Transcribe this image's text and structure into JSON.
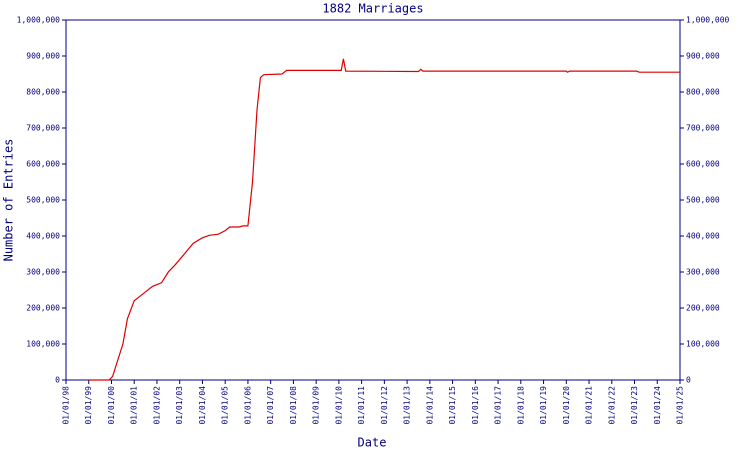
{
  "chart_data": {
    "type": "line",
    "title": "1882 Marriages",
    "x_label": "Date",
    "y_label": "Number of Entries",
    "color": "#dd0000",
    "x": [
      1999.0,
      1999.9,
      2000.05,
      2000.3,
      2000.5,
      2000.7,
      2001.0,
      2001.2,
      2001.5,
      2001.8,
      2002.2,
      2002.5,
      2002.8,
      2003.2,
      2003.6,
      2004.0,
      2004.3,
      2004.7,
      2005.0,
      2005.2,
      2005.6,
      2005.8,
      2006.0,
      2006.2,
      2006.4,
      2006.55,
      2006.7,
      2007.5,
      2007.7,
      2010.1,
      2010.2,
      2010.3,
      2013.5,
      2013.6,
      2013.7,
      2020.0,
      2020.05,
      2020.15,
      2023.1,
      2023.2,
      2025.0
    ],
    "values": [
      0,
      0,
      10000,
      60000,
      100000,
      170000,
      220000,
      230000,
      245000,
      260000,
      270000,
      300000,
      320000,
      350000,
      380000,
      395000,
      402000,
      405000,
      415000,
      425000,
      425000,
      428000,
      428000,
      550000,
      750000,
      840000,
      848000,
      850000,
      860000,
      860000,
      892000,
      858000,
      857000,
      863000,
      858000,
      858000,
      855000,
      858000,
      858000,
      855000,
      855000
    ],
    "xlim": [
      1998,
      2025
    ],
    "xticks": [
      {
        "value": 1998,
        "label": "01/01/98"
      },
      {
        "value": 1999,
        "label": "01/01/99"
      },
      {
        "value": 2000,
        "label": "01/01/00"
      },
      {
        "value": 2001,
        "label": "01/01/01"
      },
      {
        "value": 2002,
        "label": "01/01/02"
      },
      {
        "value": 2003,
        "label": "01/01/03"
      },
      {
        "value": 2004,
        "label": "01/01/04"
      },
      {
        "value": 2005,
        "label": "01/01/05"
      },
      {
        "value": 2006,
        "label": "01/01/06"
      },
      {
        "value": 2007,
        "label": "01/01/07"
      },
      {
        "value": 2008,
        "label": "01/01/08"
      },
      {
        "value": 2009,
        "label": "01/01/09"
      },
      {
        "value": 2010,
        "label": "01/01/10"
      },
      {
        "value": 2011,
        "label": "01/01/11"
      },
      {
        "value": 2012,
        "label": "01/01/12"
      },
      {
        "value": 2013,
        "label": "01/01/13"
      },
      {
        "value": 2014,
        "label": "01/01/14"
      },
      {
        "value": 2015,
        "label": "01/01/15"
      },
      {
        "value": 2016,
        "label": "01/01/16"
      },
      {
        "value": 2017,
        "label": "01/01/17"
      },
      {
        "value": 2018,
        "label": "01/01/18"
      },
      {
        "value": 2019,
        "label": "01/01/19"
      },
      {
        "value": 2020,
        "label": "01/01/20"
      },
      {
        "value": 2021,
        "label": "01/01/21"
      },
      {
        "value": 2022,
        "label": "01/01/22"
      },
      {
        "value": 2023,
        "label": "01/01/23"
      },
      {
        "value": 2024,
        "label": "01/01/24"
      },
      {
        "value": 2025,
        "label": "01/01/25"
      }
    ],
    "ylim": [
      0,
      1000000
    ],
    "yticks": [
      0,
      {
        "value": 100000,
        "label": "100,000"
      },
      {
        "value": 200000,
        "label": "200,000"
      },
      {
        "value": 300000,
        "label": "300,000"
      },
      {
        "value": 400000,
        "label": "400,000"
      },
      {
        "value": 500000,
        "label": "500,000"
      },
      {
        "value": 600000,
        "label": "600,000"
      },
      {
        "value": 700000,
        "label": "700,000"
      },
      {
        "value": 800000,
        "label": "800,000"
      },
      {
        "value": 900000,
        "label": "900,000"
      },
      {
        "value": 1000000,
        "label": "1,000,000"
      }
    ]
  }
}
